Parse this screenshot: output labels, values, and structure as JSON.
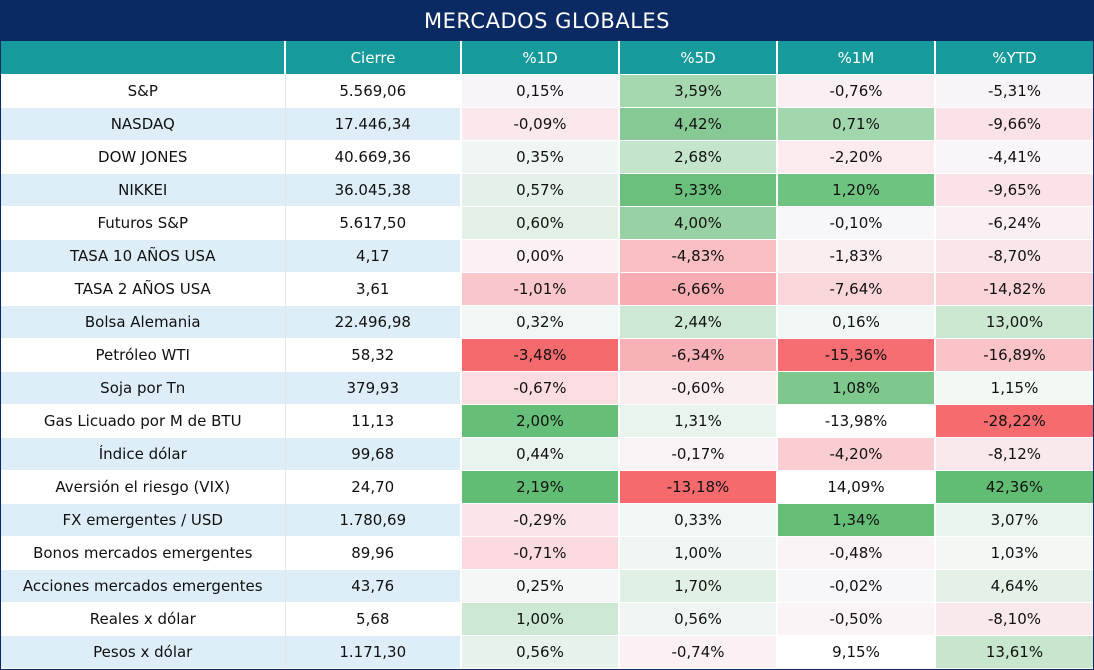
{
  "title": "MERCADOS GLOBALES",
  "headers": [
    "",
    "Cierre",
    "%1D",
    "%5D",
    "%1M",
    "%YTD"
  ],
  "rows": [
    {
      "name": "S&P",
      "close": "5.569,06",
      "cells": [
        {
          "v": "0,15%",
          "c": "#f8f5f9"
        },
        {
          "v": "3,59%",
          "c": "#a6d8b0"
        },
        {
          "v": "-0,76%",
          "c": "#faf0f3"
        },
        {
          "v": "-5,31%",
          "c": "#f9f4f7"
        }
      ]
    },
    {
      "name": "NASDAQ",
      "close": "17.446,34",
      "cells": [
        {
          "v": "-0,09%",
          "c": "#fbe8ec"
        },
        {
          "v": "4,42%",
          "c": "#86c994"
        },
        {
          "v": "0,71%",
          "c": "#a2d6ad"
        },
        {
          "v": "-9,66%",
          "c": "#fbe2e6"
        }
      ]
    },
    {
      "name": "DOW JONES",
      "close": "40.669,36",
      "cells": [
        {
          "v": "0,35%",
          "c": "#f0f6f3"
        },
        {
          "v": "2,68%",
          "c": "#c4e5cb"
        },
        {
          "v": "-2,20%",
          "c": "#fbeaee"
        },
        {
          "v": "-4,41%",
          "c": "#f9f5f8"
        }
      ]
    },
    {
      "name": "NIKKEI",
      "close": "36.045,38",
      "cells": [
        {
          "v": "0,57%",
          "c": "#e4f1e9"
        },
        {
          "v": "5,33%",
          "c": "#6ac07c"
        },
        {
          "v": "1,20%",
          "c": "#6fc380"
        },
        {
          "v": "-9,65%",
          "c": "#fbe2e6"
        }
      ]
    },
    {
      "name": "Futuros S&P",
      "close": "5.617,50",
      "cells": [
        {
          "v": "0,60%",
          "c": "#e2f0e6"
        },
        {
          "v": "4,00%",
          "c": "#98d1a4"
        },
        {
          "v": "-0,10%",
          "c": "#f7f6f9"
        },
        {
          "v": "-6,24%",
          "c": "#faeff2"
        }
      ]
    },
    {
      "name": "TASA 10 AÑOS USA",
      "close": "4,17",
      "cells": [
        {
          "v": "0,00%",
          "c": "#fbf0f3"
        },
        {
          "v": "-4,83%",
          "c": "#f9bfc3"
        },
        {
          "v": "-1,83%",
          "c": "#fbeef1"
        },
        {
          "v": "-8,70%",
          "c": "#fae5e9"
        }
      ]
    },
    {
      "name": "TASA 2 AÑOS USA",
      "close": "3,61",
      "cells": [
        {
          "v": "-1,01%",
          "c": "#f9c7cb"
        },
        {
          "v": "-6,66%",
          "c": "#f8adb2"
        },
        {
          "v": "-7,64%",
          "c": "#f9d6da"
        },
        {
          "v": "-14,82%",
          "c": "#fad4d8"
        }
      ]
    },
    {
      "name": "Bolsa Alemania",
      "close": "22.496,98",
      "cells": [
        {
          "v": "0,32%",
          "c": "#f1f7f4"
        },
        {
          "v": "2,44%",
          "c": "#cde9d3"
        },
        {
          "v": "0,16%",
          "c": "#f1f7f4"
        },
        {
          "v": "13,00%",
          "c": "#cbe8d1"
        }
      ]
    },
    {
      "name": "Petróleo WTI",
      "close": "58,32",
      "cells": [
        {
          "v": "-3,48%",
          "c": "#f56a6d"
        },
        {
          "v": "-6,34%",
          "c": "#f8b2b7"
        },
        {
          "v": "-15,36%",
          "c": "#f66e71"
        },
        {
          "v": "-16,89%",
          "c": "#f9c3c8"
        }
      ]
    },
    {
      "name": "Soja por Tn",
      "close": "379,93",
      "cells": [
        {
          "v": "-0,67%",
          "c": "#fbdde1"
        },
        {
          "v": "-0,60%",
          "c": "#fbeef1"
        },
        {
          "v": "1,08%",
          "c": "#7ec88e"
        },
        {
          "v": "1,15%",
          "c": "#f2f8f4"
        }
      ]
    },
    {
      "name": "Gas Licuado por M de BTU",
      "close": "11,13",
      "cells": [
        {
          "v": "2,00%",
          "c": "#66bf78"
        },
        {
          "v": "1,31%",
          "c": "#e9f4ed"
        },
        {
          "v": "-13,98%",
          "c": "#ffffff"
        },
        {
          "v": "-28,22%",
          "c": "#f56b6e"
        }
      ]
    },
    {
      "name": "Índice dólar",
      "close": "99,68",
      "cells": [
        {
          "v": "0,44%",
          "c": "#eaf4ee"
        },
        {
          "v": "-0,17%",
          "c": "#f9f3f6"
        },
        {
          "v": "-4,20%",
          "c": "#f9cdd1"
        },
        {
          "v": "-8,12%",
          "c": "#fae9ec"
        }
      ]
    },
    {
      "name": "Aversión el riesgo (VIX)",
      "close": "24,70",
      "cells": [
        {
          "v": "2,19%",
          "c": "#62bd74"
        },
        {
          "v": "-13,18%",
          "c": "#f56a6d"
        },
        {
          "v": "14,09%",
          "c": "#ffffff"
        },
        {
          "v": "42,36%",
          "c": "#62bd74"
        }
      ]
    },
    {
      "name": "FX emergentes / USD",
      "close": "1.780,69",
      "cells": [
        {
          "v": "-0,29%",
          "c": "#fbe5e9"
        },
        {
          "v": "0,33%",
          "c": "#f1f7f4"
        },
        {
          "v": "1,34%",
          "c": "#66bf77"
        },
        {
          "v": "3,07%",
          "c": "#eaf4ee"
        }
      ]
    },
    {
      "name": "Bonos mercados emergentes",
      "close": "89,96",
      "cells": [
        {
          "v": "-0,71%",
          "c": "#fbdbdf"
        },
        {
          "v": "1,00%",
          "c": "#f0f6f3"
        },
        {
          "v": "-0,48%",
          "c": "#faf4f6"
        },
        {
          "v": "1,03%",
          "c": "#f3f8f5"
        }
      ]
    },
    {
      "name": "Acciones mercados emergentes",
      "close": "43,76",
      "cells": [
        {
          "v": "0,25%",
          "c": "#f3f7f5"
        },
        {
          "v": "1,70%",
          "c": "#e1f0e5"
        },
        {
          "v": "-0,02%",
          "c": "#f7f6f9"
        },
        {
          "v": "4,64%",
          "c": "#e3f1e7"
        }
      ]
    },
    {
      "name": "Reales x dólar",
      "close": "5,68",
      "cells": [
        {
          "v": "1,00%",
          "c": "#cde9d3"
        },
        {
          "v": "0,56%",
          "c": "#f0f6f3"
        },
        {
          "v": "-0,50%",
          "c": "#faf4f6"
        },
        {
          "v": "-8,10%",
          "c": "#fae9ec"
        }
      ]
    },
    {
      "name": "Pesos x dólar",
      "close": "1.171,30",
      "cells": [
        {
          "v": "0,56%",
          "c": "#e6f2ea"
        },
        {
          "v": "-0,74%",
          "c": "#fbf1f4"
        },
        {
          "v": "9,15%",
          "c": "#ffffff"
        },
        {
          "v": "13,61%",
          "c": "#c7e6cd"
        }
      ]
    }
  ]
}
